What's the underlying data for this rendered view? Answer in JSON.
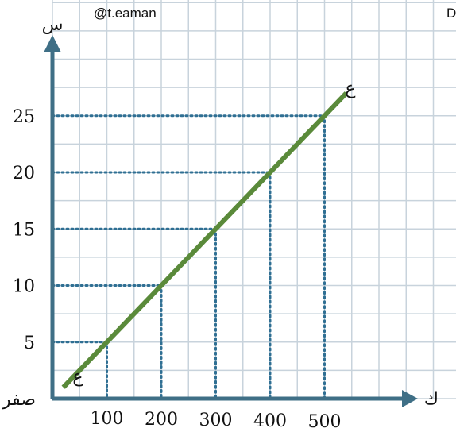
{
  "watermark": "@t.eaman",
  "watermark_right": "D",
  "chart_data": {
    "type": "line",
    "xlabel": "ك",
    "ylabel": "س",
    "origin_label": "صفر",
    "x_ticks": [
      "100",
      "200",
      "300",
      "400",
      "500"
    ],
    "y_ticks": [
      "5",
      "10",
      "15",
      "20",
      "25"
    ],
    "xlim": [
      0,
      700
    ],
    "ylim": [
      0,
      30
    ],
    "grid": true,
    "series": [
      {
        "line_label_start": "ع",
        "line_label_end": "ع",
        "x": [
          100,
          200,
          300,
          400,
          500
        ],
        "y": [
          5,
          10,
          15,
          20,
          25
        ]
      }
    ],
    "colors": {
      "line": "#5a8a3a",
      "axis": "#3f6f86",
      "grid": "#c8d3dc",
      "guides": "#2f6f93"
    }
  }
}
